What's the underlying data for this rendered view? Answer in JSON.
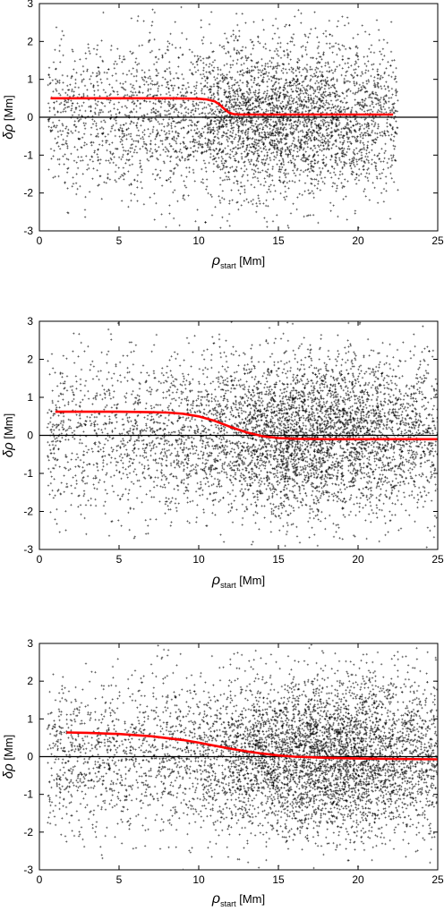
{
  "chart_data": [
    {
      "type": "scatter",
      "ylabel_symbol": "δρ",
      "ylabel_unit": "[Mm]",
      "xlabel_symbol": "ρ",
      "xlabel_sub": "start",
      "xlabel_unit": "[Mm]",
      "xlim": [
        0,
        25
      ],
      "ylim": [
        -3,
        3
      ],
      "xticks": [
        0,
        5,
        10,
        15,
        20,
        25
      ],
      "yticks": [
        -3,
        -2,
        -1,
        0,
        1,
        2,
        3
      ],
      "grid": false,
      "colors": {
        "points": "#000000",
        "fit": "#ff0000",
        "zero": "#000000"
      },
      "scatter": {
        "x_range": [
          0.5,
          22.5
        ],
        "y_range": [
          -3,
          3
        ],
        "density_peak_x": 15,
        "approx_points": 4500
      },
      "zero_line": 0,
      "fit_curve": {
        "x": [
          0.7,
          2,
          4,
          6,
          8,
          10,
          10.5,
          11,
          11.3,
          11.6,
          11.9,
          12.2,
          12.6,
          13,
          14,
          16,
          18,
          20,
          22.2
        ],
        "y": [
          0.5,
          0.5,
          0.5,
          0.5,
          0.5,
          0.49,
          0.47,
          0.42,
          0.34,
          0.22,
          0.12,
          0.08,
          0.07,
          0.07,
          0.07,
          0.07,
          0.07,
          0.07,
          0.07
        ]
      }
    },
    {
      "type": "scatter",
      "ylabel_symbol": "δρ",
      "ylabel_unit": "[Mm]",
      "xlabel_symbol": "ρ",
      "xlabel_sub": "start",
      "xlabel_unit": "[Mm]",
      "xlim": [
        0,
        25
      ],
      "ylim": [
        -3,
        3
      ],
      "xticks": [
        0,
        5,
        10,
        15,
        20,
        25
      ],
      "yticks": [
        -3,
        -2,
        -1,
        0,
        1,
        2,
        3
      ],
      "grid": false,
      "colors": {
        "points": "#000000",
        "fit": "#ff0000",
        "zero": "#000000"
      },
      "scatter": {
        "x_range": [
          0.5,
          25
        ],
        "y_range": [
          -3,
          3
        ],
        "density_peak_x": 17,
        "approx_points": 5500
      },
      "zero_line": 0,
      "fit_curve": {
        "x": [
          1,
          3,
          5,
          7,
          8,
          9,
          10,
          11,
          12,
          13,
          14,
          15,
          16,
          18,
          20,
          22,
          25
        ],
        "y": [
          0.62,
          0.62,
          0.62,
          0.61,
          0.6,
          0.57,
          0.5,
          0.38,
          0.22,
          0.08,
          -0.02,
          -0.07,
          -0.09,
          -0.1,
          -0.1,
          -0.1,
          -0.1
        ]
      }
    },
    {
      "type": "scatter",
      "ylabel_symbol": "δρ",
      "ylabel_unit": "[Mm]",
      "xlabel_symbol": "ρ",
      "xlabel_sub": "start",
      "xlabel_unit": "[Mm]",
      "xlim": [
        0,
        25
      ],
      "ylim": [
        -3,
        3
      ],
      "xticks": [
        0,
        5,
        10,
        15,
        20,
        25
      ],
      "yticks": [
        -3,
        -2,
        -1,
        0,
        1,
        2,
        3
      ],
      "grid": false,
      "colors": {
        "points": "#000000",
        "fit": "#ff0000",
        "zero": "#000000"
      },
      "scatter": {
        "x_range": [
          0.5,
          25
        ],
        "y_range": [
          -3,
          3
        ],
        "density_peak_x": 18,
        "approx_points": 6000
      },
      "zero_line": 0,
      "fit_curve": {
        "x": [
          1.7,
          3,
          5,
          7,
          9,
          10,
          11,
          12,
          13,
          14,
          15,
          16,
          18,
          20,
          22,
          25
        ],
        "y": [
          0.64,
          0.63,
          0.6,
          0.54,
          0.44,
          0.37,
          0.29,
          0.21,
          0.14,
          0.08,
          0.03,
          0.0,
          -0.03,
          -0.05,
          -0.06,
          -0.07
        ]
      }
    }
  ]
}
